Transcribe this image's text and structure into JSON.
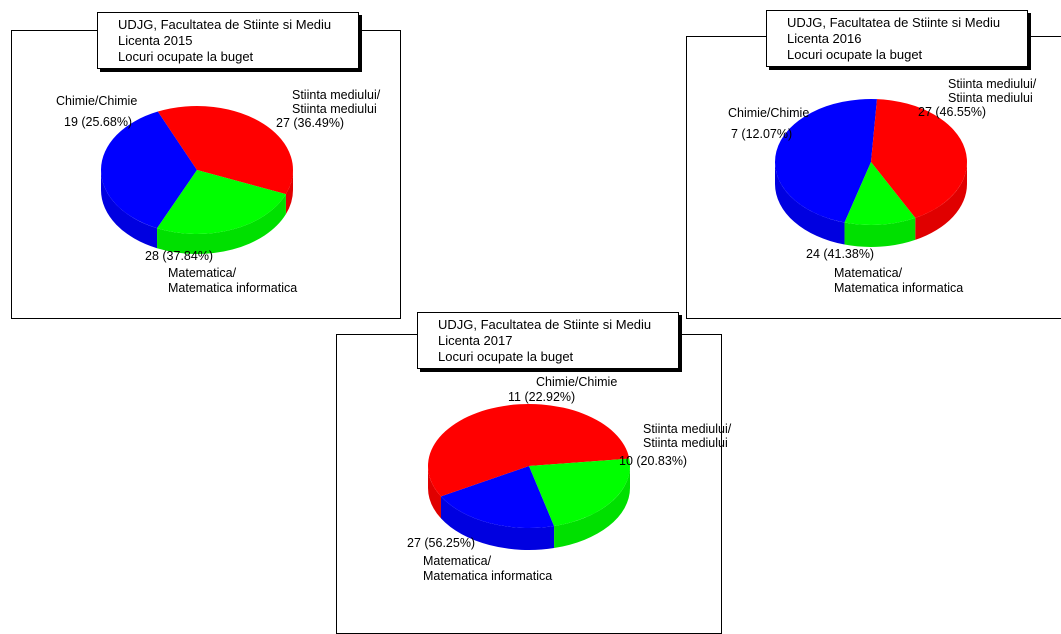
{
  "colors": {
    "red": "#ff0000",
    "blue": "#0000ff",
    "green": "#00ff00"
  },
  "chart_data": [
    {
      "type": "pie",
      "title": [
        "UDJG, Facultatea de Stiinte si Mediu",
        "Licenta 2015",
        "Locuri ocupate la buget"
      ],
      "slices": [
        {
          "name": "Stiinta mediului/ Stiinta mediului",
          "name_lines": [
            "Stiinta mediului/",
            "Stiinta mediului"
          ],
          "value": 27,
          "label": "27 (36.49%)",
          "color": "#0000ff"
        },
        {
          "name": "Matematica/ Matematica informatica",
          "name_lines": [
            "Matematica/",
            "Matematica informatica"
          ],
          "value": 28,
          "label": "28 (37.84%)",
          "color": "#ff0000"
        },
        {
          "name": "Chimie/Chimie",
          "name_lines": [
            "Chimie/Chimie"
          ],
          "value": 19,
          "label": "19 (25.68%)",
          "color": "#00ff00"
        }
      ]
    },
    {
      "type": "pie",
      "title": [
        "UDJG, Facultatea de Stiinte si Mediu",
        "Licenta 2016",
        "Locuri ocupate la buget"
      ],
      "slices": [
        {
          "name": "Stiinta mediului/ Stiinta mediului",
          "name_lines": [
            "Stiinta mediului/",
            "Stiinta mediului"
          ],
          "value": 27,
          "label": "27 (46.55%)",
          "color": "#0000ff"
        },
        {
          "name": "Matematica/ Matematica informatica",
          "name_lines": [
            "Matematica/",
            "Matematica informatica"
          ],
          "value": 24,
          "label": "24 (41.38%)",
          "color": "#ff0000"
        },
        {
          "name": "Chimie/Chimie",
          "name_lines": [
            "Chimie/Chimie"
          ],
          "value": 7,
          "label": "7 (12.07%)",
          "color": "#00ff00"
        }
      ]
    },
    {
      "type": "pie",
      "title": [
        "UDJG, Facultatea de Stiinte si Mediu",
        "Licenta 2017",
        "Locuri ocupate la buget"
      ],
      "slices": [
        {
          "name": "Stiinta mediului/ Stiinta mediului",
          "name_lines": [
            "Stiinta mediului/",
            "Stiinta mediului"
          ],
          "value": 10,
          "label": "10 (20.83%)",
          "color": "#0000ff"
        },
        {
          "name": "Matematica/ Matematica informatica",
          "name_lines": [
            "Matematica/",
            "Matematica informatica"
          ],
          "value": 27,
          "label": "27 (56.25%)",
          "color": "#ff0000"
        },
        {
          "name": "Chimie/Chimie",
          "name_lines": [
            "Chimie/Chimie"
          ],
          "value": 11,
          "label": "11 (22.92%)",
          "color": "#00ff00"
        }
      ]
    }
  ]
}
